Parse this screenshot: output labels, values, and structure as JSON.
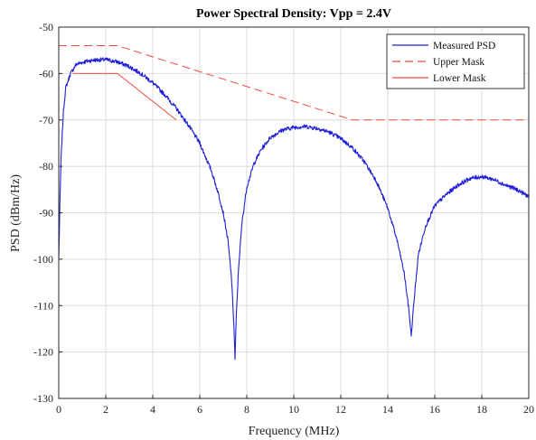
{
  "chart_data": {
    "type": "line",
    "title": "Power Spectral Density: Vpp = 2.4V",
    "xlabel": "Frequency (MHz)",
    "ylabel": "PSD (dBm/Hz)",
    "xlim": [
      0,
      20
    ],
    "ylim": [
      -130,
      -50
    ],
    "xticks": [
      0,
      2,
      4,
      6,
      8,
      10,
      12,
      14,
      16,
      18,
      20
    ],
    "yticks": [
      -50,
      -60,
      -70,
      -80,
      -90,
      -100,
      -110,
      -120,
      -130
    ],
    "grid": true,
    "legend": {
      "placement": "top-right"
    },
    "series": [
      {
        "name": "Measured PSD",
        "color": "#1f1fd8",
        "style": "solid",
        "x": [
          0,
          0.05,
          0.1,
          0.2,
          0.3,
          0.5,
          0.75,
          1,
          1.25,
          1.5,
          2,
          2.5,
          3,
          3.5,
          4,
          4.5,
          5,
          5.5,
          6,
          6.5,
          6.8,
          7,
          7.2,
          7.35,
          7.45,
          7.5,
          7.55,
          7.65,
          7.8,
          8,
          8.3,
          8.6,
          9,
          9.5,
          10,
          10.5,
          11,
          11.5,
          12,
          12.5,
          13,
          13.5,
          14,
          14.4,
          14.7,
          14.9,
          15,
          15.1,
          15.3,
          15.6,
          16,
          16.5,
          17,
          17.5,
          18,
          18.5,
          19,
          19.5,
          20
        ],
        "y": [
          -100,
          -88,
          -78,
          -68,
          -63,
          -60,
          -58,
          -57.6,
          -57.3,
          -57.1,
          -57,
          -57.5,
          -58.5,
          -60,
          -62,
          -64.5,
          -67.5,
          -71,
          -75,
          -81,
          -86,
          -90,
          -96,
          -104,
          -114,
          -121.5,
          -113,
          -102,
          -92,
          -84.5,
          -79.5,
          -76.5,
          -73.8,
          -72.2,
          -71.6,
          -71.4,
          -71.8,
          -72.6,
          -74,
          -76,
          -79,
          -83,
          -89,
          -96,
          -103,
          -111,
          -116.5,
          -110,
          -99,
          -93,
          -88.5,
          -86,
          -84,
          -82.6,
          -82.2,
          -82.8,
          -84,
          -85,
          -86.5
        ]
      },
      {
        "name": "Upper Mask",
        "color": "#ee4b42",
        "style": "dashed",
        "x": [
          0,
          2.5,
          12.5,
          20
        ],
        "y": [
          -54,
          -54,
          -70,
          -70
        ]
      },
      {
        "name": "Lower Mask",
        "color": "#ee4b42",
        "style": "solid",
        "x": [
          0.6,
          2.5,
          5
        ],
        "y": [
          -60,
          -60,
          -70
        ]
      }
    ]
  }
}
